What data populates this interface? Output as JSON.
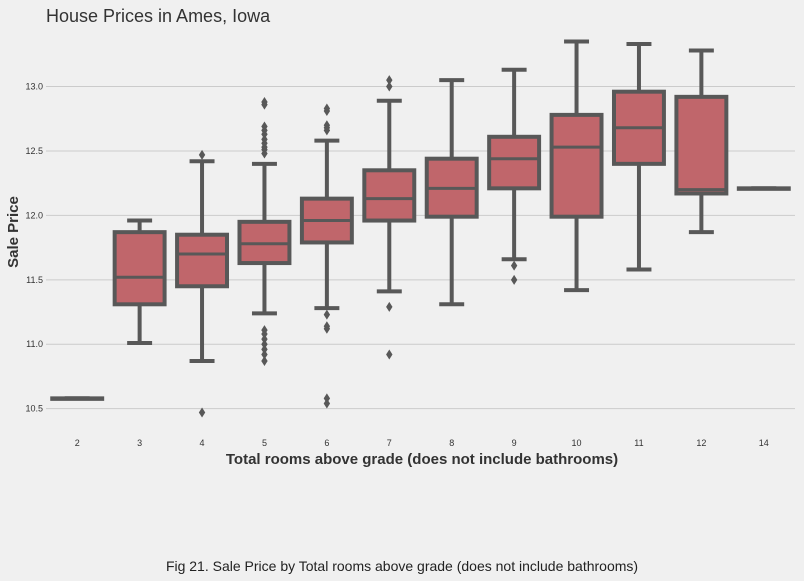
{
  "chart_data": {
    "type": "box",
    "title": "House Prices in Ames, Iowa",
    "xlabel": "Total rooms above grade (does not include bathrooms)",
    "ylabel": "Sale Price",
    "ylim": [
      10.35,
      13.4
    ],
    "yticks": [
      10.5,
      11.0,
      11.5,
      12.0,
      12.5,
      13.0
    ],
    "ytick_labels": [
      "10.5",
      "11.0",
      "11.5",
      "12.0",
      "12.5",
      "13.0"
    ],
    "grid": "horizontal",
    "colors": {
      "box_fill": "#c0666b",
      "box_edge": "#585858",
      "grid": "#cbcbcb",
      "background": "#f0f0f0"
    },
    "categories": [
      "2",
      "3",
      "4",
      "5",
      "6",
      "7",
      "8",
      "9",
      "10",
      "11",
      "12",
      "14"
    ],
    "boxes": [
      {
        "category": "2",
        "whislo": 10.58,
        "q1": 10.58,
        "med": 10.58,
        "q3": 10.58,
        "whishi": 10.58,
        "fliers": []
      },
      {
        "category": "3",
        "whislo": 11.01,
        "q1": 11.31,
        "med": 11.52,
        "q3": 11.87,
        "whishi": 11.96,
        "fliers": []
      },
      {
        "category": "4",
        "whislo": 10.87,
        "q1": 11.45,
        "med": 11.7,
        "q3": 11.85,
        "whishi": 12.42,
        "fliers": [
          10.47,
          12.47
        ]
      },
      {
        "category": "5",
        "whislo": 11.24,
        "q1": 11.63,
        "med": 11.78,
        "q3": 11.95,
        "whishi": 12.4,
        "fliers": [
          10.87,
          10.92,
          10.96,
          11.0,
          11.04,
          11.08,
          11.11,
          12.48,
          12.51,
          12.53,
          12.56,
          12.59,
          12.63,
          12.66,
          12.69,
          12.86,
          12.88
        ]
      },
      {
        "category": "6",
        "whislo": 11.28,
        "q1": 11.79,
        "med": 11.96,
        "q3": 12.13,
        "whishi": 12.58,
        "fliers": [
          10.54,
          10.58,
          11.12,
          11.14,
          11.23,
          12.66,
          12.68,
          12.7,
          12.81,
          12.83
        ]
      },
      {
        "category": "7",
        "whislo": 11.41,
        "q1": 11.96,
        "med": 12.13,
        "q3": 12.35,
        "whishi": 12.89,
        "fliers": [
          10.92,
          11.29,
          13.0,
          13.05
        ]
      },
      {
        "category": "8",
        "whislo": 11.31,
        "q1": 11.99,
        "med": 12.21,
        "q3": 12.44,
        "whishi": 13.05,
        "fliers": []
      },
      {
        "category": "9",
        "whislo": 11.66,
        "q1": 12.21,
        "med": 12.44,
        "q3": 12.61,
        "whishi": 13.13,
        "fliers": [
          11.5,
          11.61
        ]
      },
      {
        "category": "10",
        "whislo": 11.42,
        "q1": 11.99,
        "med": 12.53,
        "q3": 12.78,
        "whishi": 13.35,
        "fliers": []
      },
      {
        "category": "11",
        "whislo": 11.58,
        "q1": 12.4,
        "med": 12.68,
        "q3": 12.96,
        "whishi": 13.33,
        "fliers": []
      },
      {
        "category": "12",
        "whislo": 11.87,
        "q1": 12.17,
        "med": 12.2,
        "q3": 12.92,
        "whishi": 13.28,
        "fliers": []
      },
      {
        "category": "14",
        "whislo": 12.21,
        "q1": 12.21,
        "med": 12.21,
        "q3": 12.21,
        "whishi": 12.21,
        "fliers": []
      }
    ]
  },
  "caption": "Fig 21. Sale Price by Total rooms above grade (does not include bathrooms)"
}
